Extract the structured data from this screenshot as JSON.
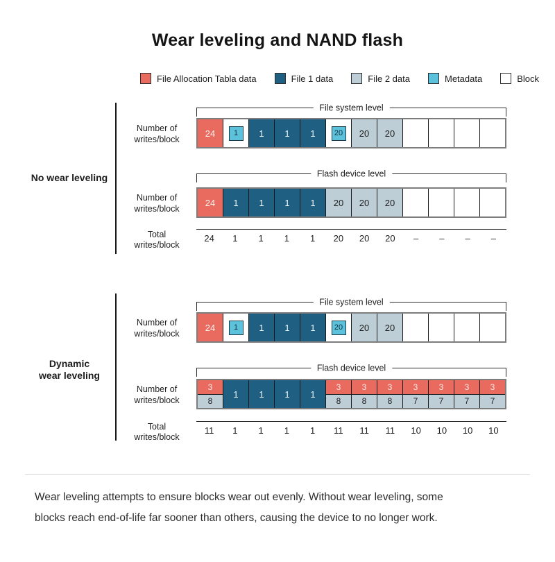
{
  "title": "Wear leveling and NAND flash",
  "colors": {
    "fat": "#E96A5E",
    "file1": "#1F5F82",
    "file2": "#BECED7",
    "metadata": "#5CC1DB",
    "block": "#FFFFFF",
    "line": "#2B2B2B",
    "row-border": "#7D7D7D"
  },
  "legend": {
    "items": [
      {
        "key": "fat",
        "label": "File Allocation Tabla data"
      },
      {
        "key": "file1",
        "label": "File 1 data"
      },
      {
        "key": "file2",
        "label": "File 2 data"
      },
      {
        "key": "metadata",
        "label": "Metadata"
      },
      {
        "key": "block",
        "label": "Block"
      }
    ]
  },
  "labels": {
    "number_of": [
      "Number of",
      "writes/block"
    ],
    "total": [
      "Total",
      "writes/block"
    ]
  },
  "sections": [
    {
      "label_lines": [
        "No wear leveling"
      ],
      "rows": [
        {
          "bracket": "File system level",
          "cells": [
            {
              "type": "fat",
              "value": "24"
            },
            {
              "type": "meta",
              "value": "1"
            },
            {
              "type": "file1",
              "value": "1"
            },
            {
              "type": "file1",
              "value": "1"
            },
            {
              "type": "file1",
              "value": "1"
            },
            {
              "type": "meta",
              "value": "20"
            },
            {
              "type": "file2",
              "value": "20"
            },
            {
              "type": "file2",
              "value": "20"
            },
            {
              "type": "empty"
            },
            {
              "type": "empty"
            },
            {
              "type": "empty"
            },
            {
              "type": "empty"
            }
          ]
        },
        {
          "bracket": "Flash device level",
          "cells": [
            {
              "type": "fat",
              "value": "24"
            },
            {
              "type": "file1",
              "value": "1"
            },
            {
              "type": "file1",
              "value": "1"
            },
            {
              "type": "file1",
              "value": "1"
            },
            {
              "type": "file1",
              "value": "1"
            },
            {
              "type": "file2",
              "value": "20"
            },
            {
              "type": "file2",
              "value": "20"
            },
            {
              "type": "file2",
              "value": "20"
            },
            {
              "type": "empty"
            },
            {
              "type": "empty"
            },
            {
              "type": "empty"
            },
            {
              "type": "empty"
            }
          ]
        }
      ],
      "totals": [
        "24",
        "1",
        "1",
        "1",
        "1",
        "20",
        "20",
        "20",
        "–",
        "–",
        "–",
        "–"
      ]
    },
    {
      "label_lines": [
        "Dynamic",
        "wear leveling"
      ],
      "rows": [
        {
          "bracket": "File system level",
          "cells": [
            {
              "type": "fat",
              "value": "24"
            },
            {
              "type": "meta",
              "value": "1"
            },
            {
              "type": "file1",
              "value": "1"
            },
            {
              "type": "file1",
              "value": "1"
            },
            {
              "type": "file1",
              "value": "1"
            },
            {
              "type": "meta",
              "value": "20"
            },
            {
              "type": "file2",
              "value": "20"
            },
            {
              "type": "file2",
              "value": "20"
            },
            {
              "type": "empty"
            },
            {
              "type": "empty"
            },
            {
              "type": "empty"
            },
            {
              "type": "empty"
            }
          ]
        },
        {
          "bracket": "Flash device level",
          "cells": [
            {
              "type": "split",
              "top": "3",
              "bottom": "8"
            },
            {
              "type": "file1",
              "value": "1"
            },
            {
              "type": "file1",
              "value": "1"
            },
            {
              "type": "file1",
              "value": "1"
            },
            {
              "type": "file1",
              "value": "1"
            },
            {
              "type": "split",
              "top": "3",
              "bottom": "8"
            },
            {
              "type": "split",
              "top": "3",
              "bottom": "8"
            },
            {
              "type": "split",
              "top": "3",
              "bottom": "8"
            },
            {
              "type": "split",
              "top": "3",
              "bottom": "7"
            },
            {
              "type": "split",
              "top": "3",
              "bottom": "7"
            },
            {
              "type": "split",
              "top": "3",
              "bottom": "7"
            },
            {
              "type": "split",
              "top": "3",
              "bottom": "7"
            }
          ]
        }
      ],
      "totals": [
        "11",
        "1",
        "1",
        "1",
        "1",
        "11",
        "11",
        "11",
        "10",
        "10",
        "10",
        "10"
      ]
    }
  ],
  "footer": {
    "lines": [
      "Wear leveling attempts to ensure blocks wear out evenly. Without wear leveling, some",
      "blocks reach end-of-life far sooner than others, causing the device to no longer work."
    ]
  }
}
